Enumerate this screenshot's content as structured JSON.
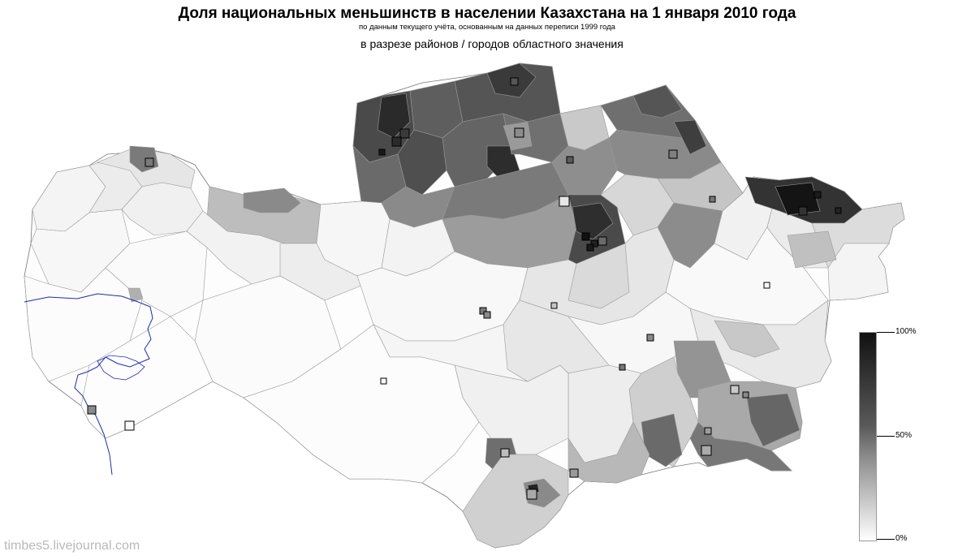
{
  "header": {
    "title": "Доля национальных меньшинств в населении Казахстана на 1 января 2010 года",
    "subtitle": "по данным текущего учёта, основанным на данных переписи 1999 года",
    "subtitle2": "в разрезе районов / городов областного значения"
  },
  "legend": {
    "max_label": "100%",
    "mid_label": "50%",
    "min_label": "0%",
    "color_dark": "#111111",
    "color_light": "#ffffff"
  },
  "watermark": "timbes5.livejournal.com",
  "colors": {
    "border": "#9a9a9a",
    "water": "#1f2bb0",
    "outline": "#333333"
  }
}
